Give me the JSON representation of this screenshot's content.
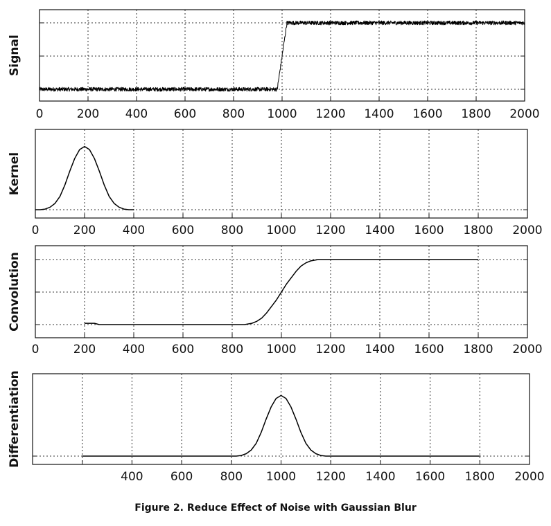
{
  "caption": "Figure 2. Reduce Effect of Noise with Gaussian Blur",
  "chart_data": [
    {
      "type": "line",
      "ylabel": "Signal",
      "xlim": [
        0,
        2000
      ],
      "ylim": [
        0,
        1
      ],
      "grid": true,
      "xticks": [
        0,
        200,
        400,
        600,
        800,
        1000,
        1200,
        1400,
        1600,
        1800,
        2000
      ],
      "xtick_labels": [
        "0",
        "200",
        "400",
        "600",
        "800",
        "1000",
        "1200",
        "1400",
        "1600",
        "1800",
        "2000"
      ],
      "yticks": [
        0,
        0.5,
        1
      ],
      "series": [
        {
          "noise": 0.03,
          "x": [
            0,
            980,
            1000,
            1020,
            2000
          ],
          "y": [
            0,
            0,
            0.5,
            1,
            1
          ]
        }
      ]
    },
    {
      "type": "line",
      "ylabel": "Kernel",
      "xlim": [
        0,
        2000
      ],
      "ylim": [
        0,
        1.05
      ],
      "grid": true,
      "xticks": [
        0,
        200,
        400,
        600,
        800,
        1000,
        1200,
        1400,
        1600,
        1800,
        2000
      ],
      "xtick_labels": [
        "0",
        "200",
        "400",
        "600",
        "800",
        "1000",
        "1200",
        "1400",
        "1600",
        "1800",
        "2000"
      ],
      "yticks": [
        0
      ],
      "series": [
        {
          "x": [
            0,
            20,
            40,
            60,
            80,
            100,
            120,
            140,
            160,
            180,
            200,
            220,
            240,
            260,
            280,
            300,
            320,
            340,
            360,
            380,
            400
          ],
          "y": [
            0.0,
            0.0,
            0.01,
            0.04,
            0.1,
            0.21,
            0.39,
            0.61,
            0.81,
            0.95,
            1.0,
            0.95,
            0.81,
            0.61,
            0.39,
            0.21,
            0.1,
            0.04,
            0.01,
            0.0,
            0.0
          ]
        }
      ]
    },
    {
      "type": "line",
      "ylabel": "Convolution",
      "xlim": [
        0,
        2000
      ],
      "ylim": [
        0,
        1
      ],
      "grid": true,
      "xticks": [
        0,
        200,
        400,
        600,
        800,
        1000,
        1200,
        1400,
        1600,
        1800,
        2000
      ],
      "xtick_labels": [
        "0",
        "200",
        "400",
        "600",
        "800",
        "1000",
        "1200",
        "1400",
        "1600",
        "1800",
        "2000"
      ],
      "yticks": [
        0,
        0.5,
        1
      ],
      "series": [
        {
          "x": [
            200,
            240,
            260,
            850,
            880,
            900,
            920,
            940,
            960,
            980,
            1000,
            1020,
            1040,
            1060,
            1080,
            1100,
            1120,
            1150,
            1800
          ],
          "y": [
            0.02,
            0.02,
            0.0,
            0.0,
            0.02,
            0.05,
            0.1,
            0.18,
            0.28,
            0.38,
            0.5,
            0.62,
            0.72,
            0.82,
            0.9,
            0.95,
            0.98,
            1.0,
            1.0
          ]
        }
      ]
    },
    {
      "type": "line",
      "ylabel": "Differentiation",
      "xlim": [
        0,
        2000
      ],
      "ylim": [
        0,
        1.05
      ],
      "grid": true,
      "xticks": [
        200,
        400,
        600,
        800,
        1000,
        1200,
        1400,
        1600,
        1800,
        2000
      ],
      "xtick_labels": [
        "",
        "400",
        "600",
        "800",
        "1000",
        "1200",
        "1400",
        "1600",
        "1800",
        "2000"
      ],
      "yticks": [
        0
      ],
      "series": [
        {
          "x": [
            200,
            820,
            840,
            860,
            880,
            900,
            920,
            940,
            960,
            980,
            1000,
            1020,
            1040,
            1060,
            1080,
            1100,
            1120,
            1140,
            1160,
            1180,
            1800
          ],
          "y": [
            0.0,
            0.0,
            0.01,
            0.04,
            0.1,
            0.21,
            0.39,
            0.61,
            0.81,
            0.95,
            1.0,
            0.95,
            0.81,
            0.61,
            0.39,
            0.21,
            0.1,
            0.04,
            0.01,
            0.0,
            0.0
          ]
        }
      ]
    }
  ]
}
